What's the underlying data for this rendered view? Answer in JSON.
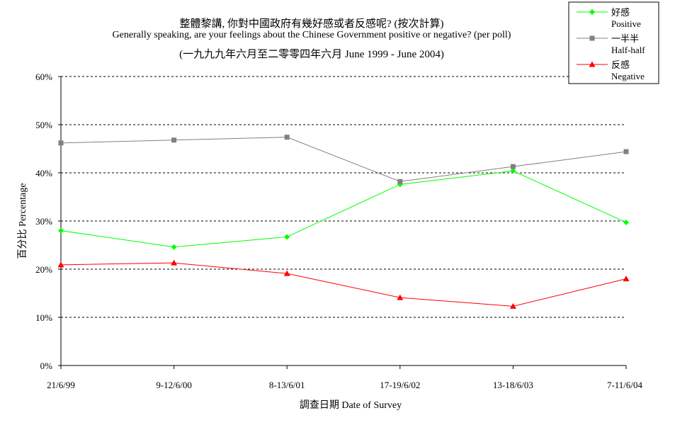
{
  "chart_data": {
    "type": "line",
    "title": "整體黎講, 你對中國政府有幾好感或者反感呢? (按次計算)",
    "subtitle": "Generally speaking, are your feelings about the Chinese Government positive or negative? (per poll)",
    "subtitle2": "(一九九九年六月至二零零四年六月 June 1999 - June 2004)",
    "xlabel": "調查日期 Date of Survey",
    "ylabel": "百分比 Percentage",
    "categories": [
      "21/6/99",
      "9-12/6/00",
      "8-13/6/01",
      "17-19/6/02",
      "13-18/6/03",
      "7-11/6/04"
    ],
    "y_ticks": [
      "0%",
      "10%",
      "20%",
      "30%",
      "40%",
      "50%",
      "60%"
    ],
    "ylim": [
      0,
      60
    ],
    "grid": true,
    "legend_position": "top-right",
    "series": [
      {
        "name": "好感",
        "name_en": "Positive",
        "color": "#00ff00",
        "marker": "diamond",
        "values": [
          28.0,
          24.6,
          26.7,
          37.6,
          40.4,
          29.7
        ]
      },
      {
        "name": "一半半",
        "name_en": "Half-half",
        "color": "#808080",
        "marker": "square",
        "values": [
          46.2,
          46.8,
          47.4,
          38.2,
          41.3,
          44.4
        ]
      },
      {
        "name": "反感",
        "name_en": "Negative",
        "color": "#ff0000",
        "marker": "triangle",
        "values": [
          20.9,
          21.3,
          19.1,
          14.1,
          12.3,
          18.0
        ]
      }
    ]
  }
}
